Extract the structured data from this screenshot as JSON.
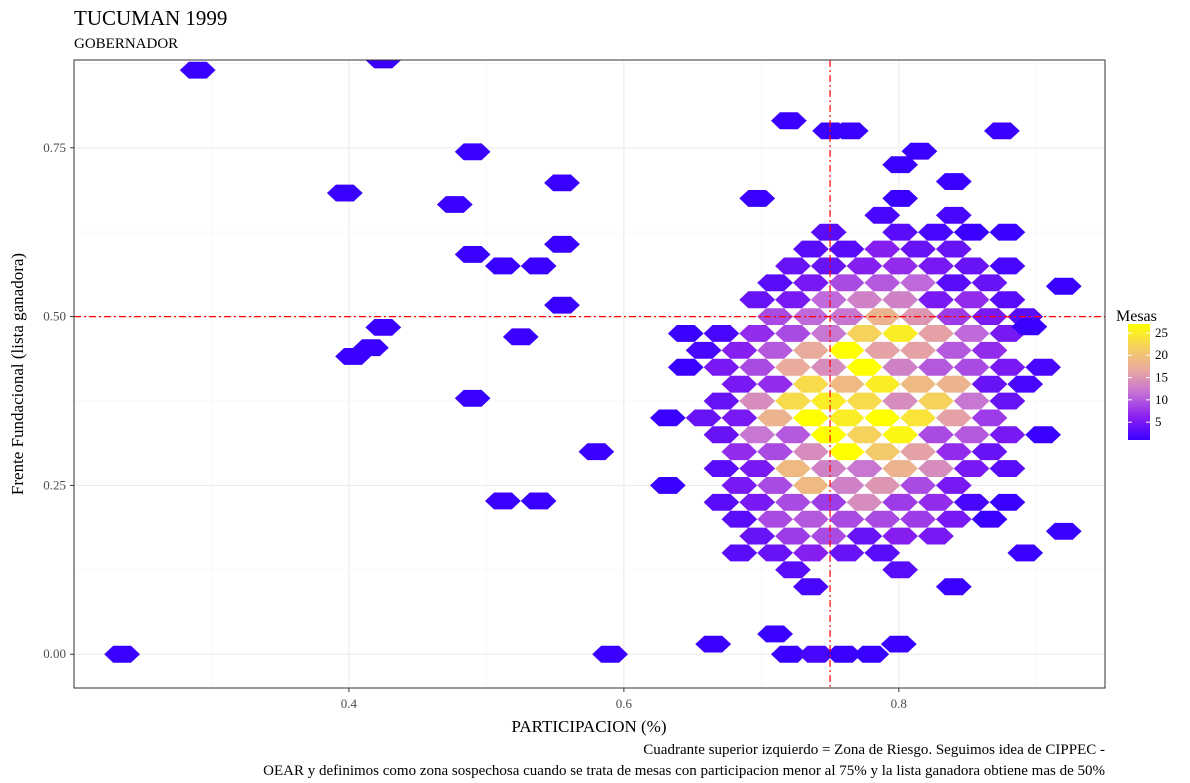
{
  "chart_data": {
    "type": "heatmap",
    "subtype": "hexbin",
    "title": "TUCUMAN 1999",
    "subtitle": "GOBERNADOR",
    "xlabel": "PARTICIPACION (%)",
    "ylabel": "Frente Fundacional (lista ganadora)",
    "xlim": [
      0.2,
      0.95
    ],
    "ylim": [
      -0.05,
      0.88
    ],
    "x_ticks": [
      0.4,
      0.6,
      0.8
    ],
    "x_tick_labels": [
      "0.4",
      "0.6",
      "0.8"
    ],
    "y_ticks": [
      0.0,
      0.25,
      0.5,
      0.75
    ],
    "y_tick_labels": [
      "0.00",
      "0.25",
      "0.50",
      "0.75"
    ],
    "grid": true,
    "reference_lines": {
      "vertical_x": 0.75,
      "horizontal_y": 0.5,
      "color": "#ff0000",
      "style": "dotdash"
    },
    "legend": {
      "title": "Mesas",
      "placement": "right",
      "min": 1,
      "max": 27,
      "ticks": [
        5,
        10,
        15,
        20,
        25
      ],
      "tick_labels": [
        "5",
        "10",
        "15",
        "20",
        "25"
      ],
      "colors": [
        "#3a00ff",
        "#8a1ff0",
        "#c36fd8",
        "#e8a8a0",
        "#f5d060",
        "#ffff00"
      ]
    },
    "caption": "Cuadrante superior izquierdo = Zona de Riesgo. Seguimos idea de CIPPEC - OEAR y definimos como zona sospechosa cuando se trata de mesas con participacion menor al 75% y la lista ganadora obtiene mas de 50%",
    "caption_lines": [
      "Cuadrante superior izquierdo = Zona de Riesgo. Seguimos idea de CIPPEC -",
      "OEAR y definimos como zona sospechosa cuando se trata de mesas con participacion menor al 75% y la lista ganadora obtiene mas de 50%"
    ],
    "bin_width_x": 0.026,
    "bin_height_y": 0.025,
    "outlier_bins": [
      {
        "x": 0.235,
        "y": 0.0,
        "count": 1
      },
      {
        "x": 0.29,
        "y": 0.865,
        "count": 1
      },
      {
        "x": 0.425,
        "y": 0.88,
        "count": 1
      },
      {
        "x": 0.397,
        "y": 0.683,
        "count": 1
      },
      {
        "x": 0.49,
        "y": 0.744,
        "count": 1
      },
      {
        "x": 0.477,
        "y": 0.666,
        "count": 1
      },
      {
        "x": 0.49,
        "y": 0.592,
        "count": 1
      },
      {
        "x": 0.425,
        "y": 0.484,
        "count": 1
      },
      {
        "x": 0.403,
        "y": 0.441,
        "count": 1
      },
      {
        "x": 0.416,
        "y": 0.454,
        "count": 1
      },
      {
        "x": 0.49,
        "y": 0.379,
        "count": 1
      },
      {
        "x": 0.512,
        "y": 0.575,
        "count": 1
      },
      {
        "x": 0.538,
        "y": 0.575,
        "count": 1
      },
      {
        "x": 0.525,
        "y": 0.47,
        "count": 1
      },
      {
        "x": 0.555,
        "y": 0.698,
        "count": 1
      },
      {
        "x": 0.555,
        "y": 0.607,
        "count": 1
      },
      {
        "x": 0.555,
        "y": 0.517,
        "count": 1
      },
      {
        "x": 0.512,
        "y": 0.227,
        "count": 1
      },
      {
        "x": 0.538,
        "y": 0.227,
        "count": 1
      },
      {
        "x": 0.59,
        "y": 0.0,
        "count": 1
      },
      {
        "x": 0.72,
        "y": 0.79,
        "count": 1
      },
      {
        "x": 0.75,
        "y": 0.775,
        "count": 1
      },
      {
        "x": 0.765,
        "y": 0.775,
        "count": 1
      },
      {
        "x": 0.875,
        "y": 0.775,
        "count": 1
      },
      {
        "x": 0.815,
        "y": 0.745,
        "count": 1
      },
      {
        "x": 0.92,
        "y": 0.545,
        "count": 1
      },
      {
        "x": 0.92,
        "y": 0.182,
        "count": 1
      },
      {
        "x": 0.895,
        "y": 0.485,
        "count": 1
      },
      {
        "x": 0.71,
        "y": 0.03,
        "count": 1
      },
      {
        "x": 0.72,
        "y": 0.0,
        "count": 1
      },
      {
        "x": 0.74,
        "y": 0.0,
        "count": 2
      },
      {
        "x": 0.76,
        "y": 0.0,
        "count": 1
      },
      {
        "x": 0.78,
        "y": 0.0,
        "count": 1
      },
      {
        "x": 0.8,
        "y": 0.015,
        "count": 1
      },
      {
        "x": 0.665,
        "y": 0.015,
        "count": 1
      }
    ],
    "density_model": {
      "center_x": 0.775,
      "center_y": 0.37,
      "spread_x": 0.055,
      "spread_y": 0.12,
      "correlation": 0.15,
      "peak_count": 27,
      "core_x_range": [
        0.58,
        0.92
      ],
      "core_y_range": [
        0.1,
        0.73
      ]
    }
  }
}
